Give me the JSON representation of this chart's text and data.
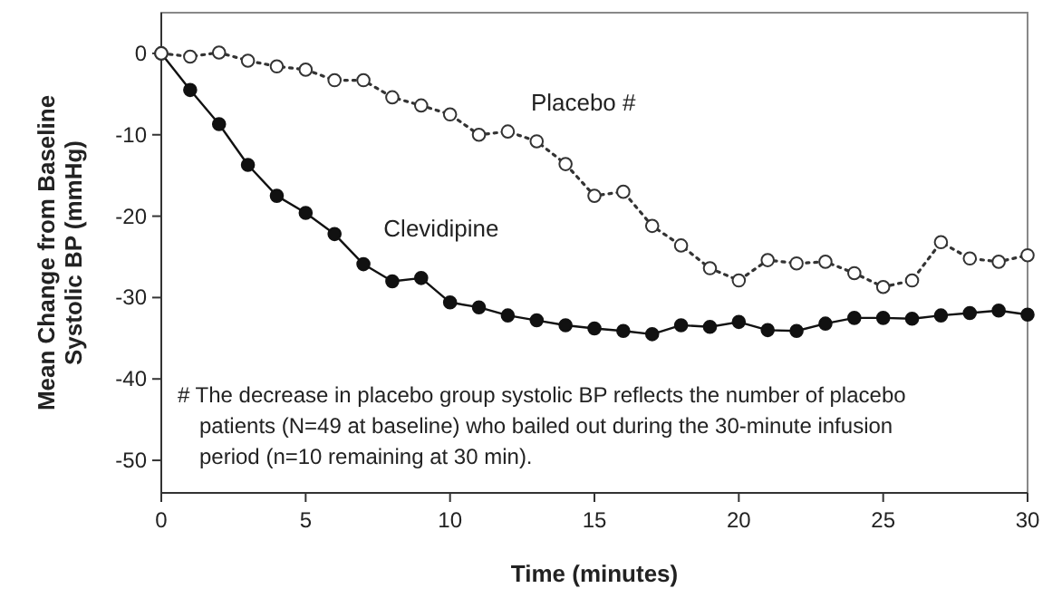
{
  "chart_data": {
    "type": "line",
    "xlabel": "Time (minutes)",
    "ylabel": "Mean Change from Baseline Systolic BP (mmHg)",
    "x": [
      0,
      1,
      2,
      3,
      4,
      5,
      6,
      7,
      8,
      9,
      10,
      11,
      12,
      13,
      14,
      15,
      16,
      17,
      18,
      19,
      20,
      21,
      22,
      23,
      24,
      25,
      26,
      27,
      28,
      29,
      30
    ],
    "series": [
      {
        "name": "Clevidipine",
        "color": "#111111",
        "line_style": "solid",
        "values": [
          0,
          -4.5,
          -8.7,
          -13.7,
          -17.5,
          -19.6,
          -22.2,
          -25.9,
          -28,
          -27.6,
          -30.6,
          -31.2,
          -32.2,
          -32.8,
          -33.4,
          -33.8,
          -34.1,
          -34.5,
          -33.4,
          -33.6,
          -33,
          -34,
          -34.1,
          -33.2,
          -32.5,
          -32.5,
          -32.6,
          -32.2,
          -31.9,
          -31.6,
          -32.1
        ]
      },
      {
        "name": "Placebo #",
        "color": "#333333",
        "line_style": "dotted",
        "values": [
          0,
          -0.4,
          0.1,
          -0.9,
          -1.6,
          -2,
          -3.3,
          -3.3,
          -5.4,
          -6.4,
          -7.5,
          -10,
          -9.6,
          -10.8,
          -13.6,
          -17.5,
          -17,
          -21.2,
          -23.6,
          -26.4,
          -27.9,
          -25.4,
          -25.8,
          -25.6,
          -27,
          -28.7,
          -27.9,
          -23.2,
          -25.2,
          -25.6,
          -24.8
        ]
      }
    ],
    "xlim": [
      0,
      30
    ],
    "xticks": [
      0,
      5,
      10,
      15,
      20,
      25,
      30
    ],
    "ylim": [
      -54,
      5
    ],
    "yticks": [
      0,
      -10,
      -20,
      -30,
      -40,
      -50
    ],
    "marker": "circle",
    "annotations": [
      "# The decrease in placebo group systolic BP reflects the number of placebo patients (N=49 at baseline) who bailed out during the 30-minute infusion period (n=10 remaining at 30 min)."
    ]
  }
}
